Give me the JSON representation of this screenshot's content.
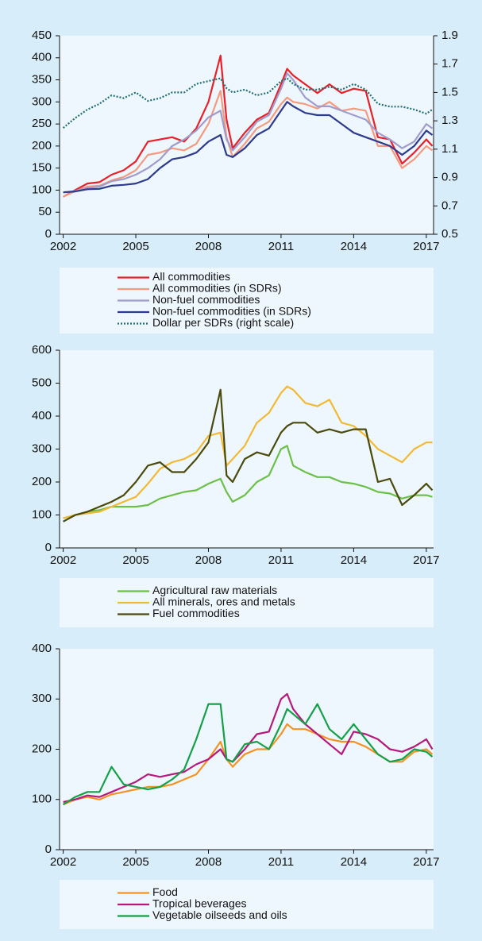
{
  "chart_data": [
    {
      "type": "line",
      "x": [
        2002,
        2002.5,
        2003,
        2003.5,
        2004,
        2004.5,
        2005,
        2005.5,
        2006,
        2006.5,
        2007,
        2007.5,
        2008,
        2008.5,
        2008.75,
        2009,
        2009.5,
        2010,
        2010.5,
        2011,
        2011.25,
        2011.5,
        2012,
        2012.5,
        2013,
        2013.5,
        2014,
        2014.5,
        2015,
        2015.5,
        2016,
        2016.5,
        2017,
        2017.25
      ],
      "xlim": [
        2001.85,
        2017.3
      ],
      "xticks": [
        2002,
        2005,
        2008,
        2011,
        2014,
        2017
      ],
      "ylim": [
        0,
        450
      ],
      "yticks": [
        0,
        50,
        100,
        150,
        200,
        250,
        300,
        350,
        400,
        450
      ],
      "y2lim": [
        0.5,
        1.9
      ],
      "y2ticks": [
        0.5,
        0.7,
        0.9,
        1.1,
        1.3,
        1.5,
        1.7,
        1.9
      ],
      "series": [
        {
          "name": "All commodities",
          "color": "#e8202a",
          "values": [
            85,
            100,
            115,
            118,
            135,
            145,
            165,
            210,
            215,
            220,
            210,
            240,
            300,
            405,
            260,
            195,
            230,
            260,
            275,
            340,
            375,
            360,
            340,
            320,
            340,
            320,
            330,
            325,
            220,
            215,
            160,
            185,
            215,
            200
          ]
        },
        {
          "name": "All commodities (in SDRs)",
          "color": "#f39a80",
          "values": [
            85,
            98,
            108,
            110,
            122,
            130,
            145,
            180,
            185,
            195,
            190,
            205,
            250,
            325,
            220,
            175,
            205,
            240,
            255,
            295,
            310,
            300,
            295,
            285,
            300,
            280,
            285,
            280,
            200,
            200,
            150,
            170,
            200,
            190
          ]
        },
        {
          "name": "Non-fuel commodities",
          "color": "#a09ccc",
          "values": [
            95,
            98,
            105,
            108,
            120,
            125,
            135,
            150,
            170,
            200,
            215,
            235,
            265,
            280,
            215,
            190,
            220,
            255,
            270,
            330,
            365,
            350,
            310,
            290,
            290,
            280,
            270,
            260,
            230,
            215,
            195,
            210,
            250,
            240
          ]
        },
        {
          "name": "Non-fuel commodities (in SDRs)",
          "color": "#2e3a8c",
          "values": [
            95,
            97,
            102,
            103,
            110,
            112,
            115,
            125,
            150,
            170,
            175,
            185,
            210,
            225,
            180,
            175,
            195,
            225,
            240,
            280,
            300,
            290,
            275,
            270,
            270,
            250,
            230,
            220,
            210,
            200,
            180,
            200,
            235,
            225
          ]
        },
        {
          "name": "Dollar per SDRs (right scale)",
          "color": "#1f6f73",
          "axis": "y2",
          "line_style": "dotted",
          "values": [
            1.25,
            1.32,
            1.38,
            1.42,
            1.48,
            1.46,
            1.5,
            1.44,
            1.46,
            1.5,
            1.5,
            1.56,
            1.58,
            1.6,
            1.53,
            1.5,
            1.52,
            1.48,
            1.5,
            1.58,
            1.6,
            1.56,
            1.52,
            1.52,
            1.54,
            1.52,
            1.56,
            1.52,
            1.42,
            1.4,
            1.4,
            1.38,
            1.35,
            1.38
          ]
        }
      ]
    },
    {
      "type": "line",
      "x": [
        2002,
        2002.5,
        2003,
        2003.5,
        2004,
        2004.5,
        2005,
        2005.5,
        2006,
        2006.5,
        2007,
        2007.5,
        2008,
        2008.5,
        2008.75,
        2009,
        2009.5,
        2010,
        2010.5,
        2011,
        2011.25,
        2011.5,
        2012,
        2012.5,
        2013,
        2013.5,
        2014,
        2014.5,
        2015,
        2015.5,
        2016,
        2016.5,
        2017,
        2017.25
      ],
      "xlim": [
        2001.85,
        2017.3
      ],
      "xticks": [
        2002,
        2005,
        2008,
        2011,
        2014,
        2017
      ],
      "ylim": [
        0,
        600
      ],
      "yticks": [
        0,
        100,
        200,
        300,
        400,
        500,
        600
      ],
      "series": [
        {
          "name": "Agricultural raw materials",
          "color": "#6cc04a",
          "values": [
            90,
            100,
            110,
            115,
            125,
            125,
            125,
            130,
            150,
            160,
            170,
            175,
            195,
            210,
            170,
            140,
            160,
            200,
            220,
            300,
            310,
            250,
            230,
            215,
            215,
            200,
            195,
            185,
            170,
            165,
            150,
            160,
            160,
            155
          ]
        },
        {
          "name": "All minerals, ores and metals",
          "color": "#f2b935",
          "values": [
            90,
            100,
            105,
            110,
            125,
            140,
            155,
            195,
            240,
            260,
            270,
            290,
            340,
            350,
            250,
            270,
            310,
            380,
            410,
            470,
            490,
            480,
            440,
            430,
            450,
            380,
            370,
            340,
            300,
            280,
            260,
            300,
            320,
            320
          ]
        },
        {
          "name": "Fuel commodities",
          "color": "#4a4a0c",
          "values": [
            80,
            100,
            110,
            125,
            140,
            160,
            200,
            250,
            260,
            230,
            230,
            270,
            320,
            480,
            220,
            200,
            270,
            290,
            280,
            350,
            370,
            380,
            380,
            350,
            360,
            350,
            360,
            360,
            200,
            210,
            130,
            160,
            195,
            175
          ]
        }
      ]
    },
    {
      "type": "line",
      "x": [
        2002,
        2002.5,
        2003,
        2003.5,
        2004,
        2004.5,
        2005,
        2005.5,
        2006,
        2006.5,
        2007,
        2007.5,
        2008,
        2008.5,
        2008.75,
        2009,
        2009.5,
        2010,
        2010.5,
        2011,
        2011.25,
        2011.5,
        2012,
        2012.5,
        2013,
        2013.5,
        2014,
        2014.5,
        2015,
        2015.5,
        2016,
        2016.5,
        2017,
        2017.25
      ],
      "xlim": [
        2001.85,
        2017.3
      ],
      "xticks": [
        2002,
        2005,
        2008,
        2011,
        2014,
        2017
      ],
      "ylim": [
        0,
        400
      ],
      "yticks": [
        0,
        100,
        200,
        300,
        400
      ],
      "series": [
        {
          "name": "Food",
          "color": "#f39325",
          "values": [
            90,
            100,
            105,
            100,
            110,
            115,
            120,
            125,
            125,
            130,
            140,
            150,
            180,
            215,
            180,
            165,
            190,
            200,
            200,
            230,
            250,
            240,
            240,
            230,
            220,
            215,
            215,
            205,
            190,
            175,
            175,
            195,
            200,
            190
          ]
        },
        {
          "name": "Tropical beverages",
          "color": "#b5197c",
          "values": [
            95,
            100,
            108,
            105,
            115,
            125,
            135,
            150,
            145,
            150,
            155,
            170,
            180,
            200,
            180,
            175,
            200,
            230,
            235,
            300,
            310,
            280,
            250,
            230,
            210,
            190,
            235,
            230,
            220,
            200,
            195,
            205,
            220,
            200
          ]
        },
        {
          "name": "Vegetable oilseeds and oils",
          "color": "#14a049",
          "values": [
            90,
            105,
            115,
            115,
            165,
            130,
            125,
            120,
            125,
            140,
            160,
            220,
            290,
            290,
            180,
            175,
            210,
            215,
            200,
            250,
            280,
            270,
            250,
            290,
            240,
            220,
            250,
            220,
            190,
            175,
            180,
            200,
            195,
            185
          ]
        }
      ]
    }
  ]
}
